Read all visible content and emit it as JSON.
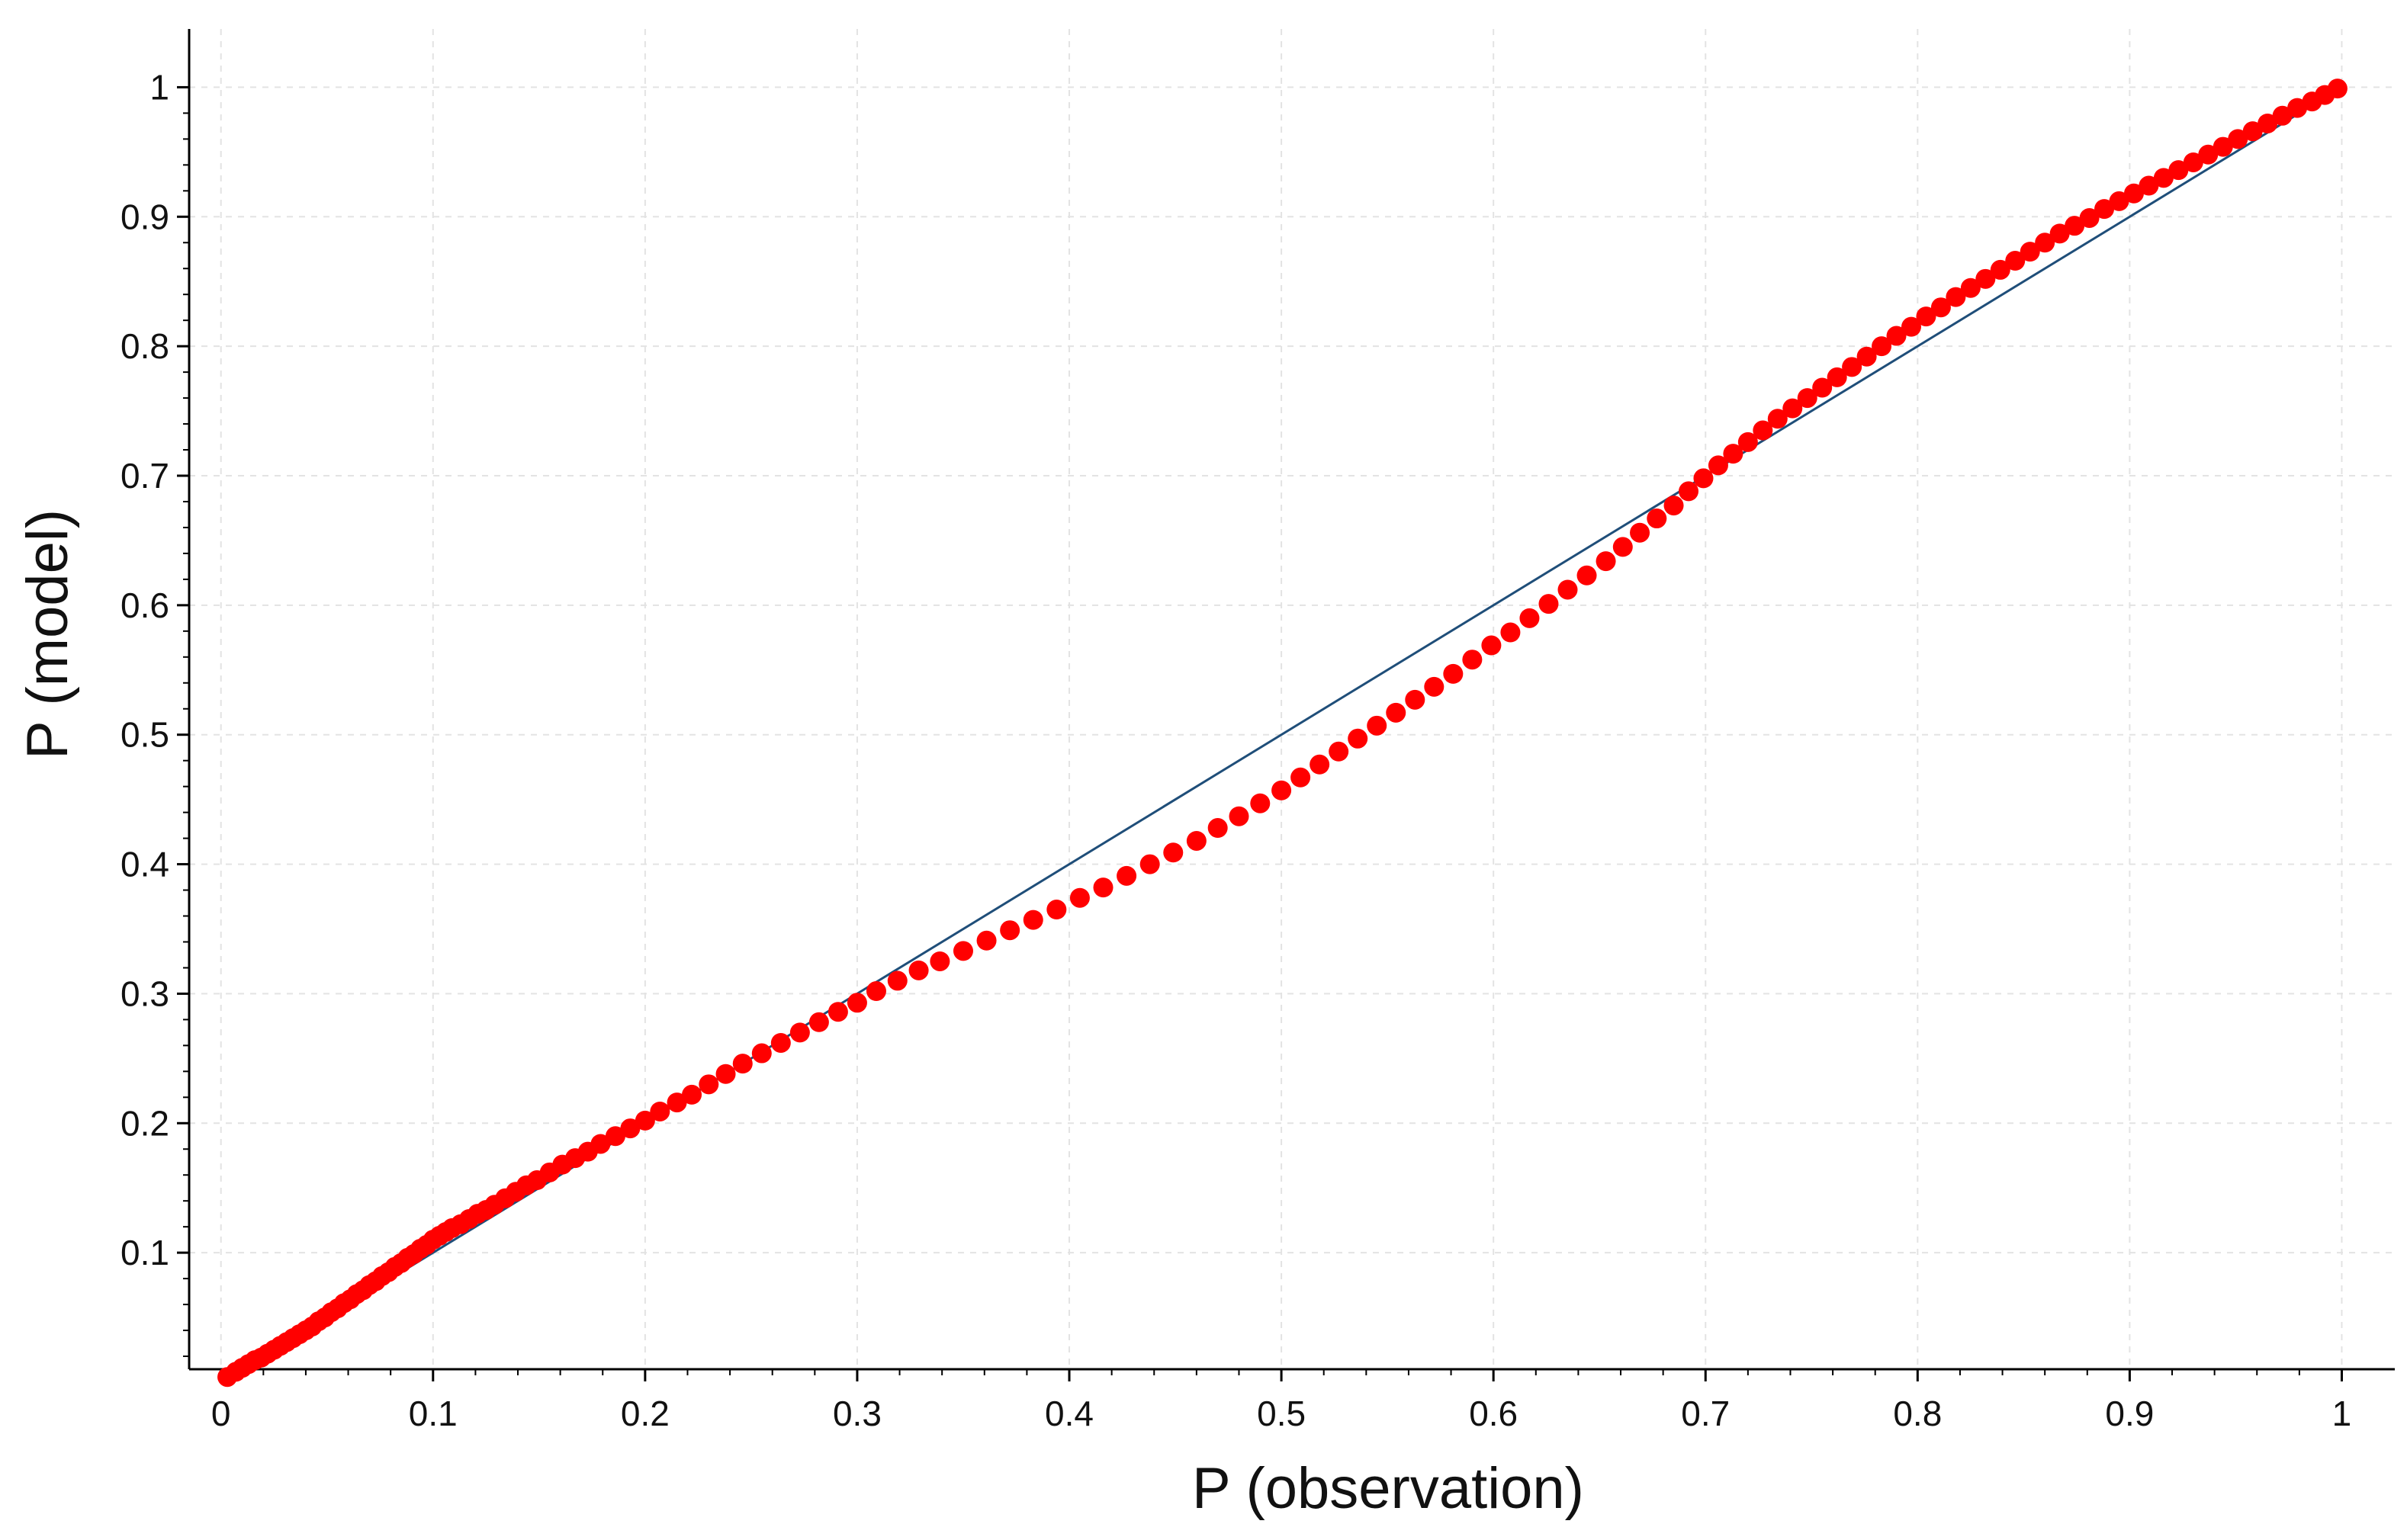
{
  "chart_data": {
    "type": "scatter",
    "title": "",
    "xlabel": "P (observation)",
    "ylabel": "P (model)",
    "xlim": [
      -0.015,
      1.025
    ],
    "ylim": [
      0.01,
      1.045
    ],
    "x_ticks": [
      0,
      0.1,
      0.2,
      0.3,
      0.4,
      0.5,
      0.6,
      0.7,
      0.8,
      0.9,
      1
    ],
    "x_tick_labels": [
      "0",
      "0.1",
      "0.2",
      "0.3",
      "0.4",
      "0.5",
      "0.6",
      "0.7",
      "0.8",
      "0.9",
      "1"
    ],
    "y_ticks": [
      0.1,
      0.2,
      0.3,
      0.4,
      0.5,
      0.6,
      0.7,
      0.8,
      0.9,
      1
    ],
    "y_tick_labels": [
      "0.1",
      "0.2",
      "0.3",
      "0.4",
      "0.5",
      "0.6",
      "0.7",
      "0.8",
      "0.9",
      "1"
    ],
    "grid": true,
    "legend": "none",
    "colors": {
      "points": "#ff0000",
      "reference_line": "#1f4e79",
      "grid": "#e3e3e3",
      "axis": "#000000"
    },
    "reference_line": {
      "x": [
        0,
        1
      ],
      "y": [
        0,
        1
      ]
    },
    "series": [
      {
        "points": [
          [
            0.003,
            0.004
          ],
          [
            0.007,
            0.008
          ],
          [
            0.01,
            0.011
          ],
          [
            0.013,
            0.014
          ],
          [
            0.016,
            0.017
          ],
          [
            0.019,
            0.019
          ],
          [
            0.022,
            0.022
          ],
          [
            0.025,
            0.025
          ],
          [
            0.028,
            0.028
          ],
          [
            0.031,
            0.031
          ],
          [
            0.034,
            0.034
          ],
          [
            0.037,
            0.037
          ],
          [
            0.04,
            0.04
          ],
          [
            0.043,
            0.043
          ],
          [
            0.046,
            0.047
          ],
          [
            0.049,
            0.05
          ],
          [
            0.052,
            0.054
          ],
          [
            0.055,
            0.057
          ],
          [
            0.058,
            0.061
          ],
          [
            0.061,
            0.064
          ],
          [
            0.064,
            0.068
          ],
          [
            0.067,
            0.071
          ],
          [
            0.07,
            0.075
          ],
          [
            0.073,
            0.078
          ],
          [
            0.076,
            0.082
          ],
          [
            0.079,
            0.085
          ],
          [
            0.082,
            0.089
          ],
          [
            0.085,
            0.092
          ],
          [
            0.088,
            0.096
          ],
          [
            0.091,
            0.099
          ],
          [
            0.094,
            0.103
          ],
          [
            0.097,
            0.106
          ],
          [
            0.1,
            0.11
          ],
          [
            0.103,
            0.113
          ],
          [
            0.106,
            0.116
          ],
          [
            0.109,
            0.119
          ],
          [
            0.113,
            0.122
          ],
          [
            0.117,
            0.126
          ],
          [
            0.121,
            0.13
          ],
          [
            0.125,
            0.133
          ],
          [
            0.129,
            0.137
          ],
          [
            0.134,
            0.142
          ],
          [
            0.139,
            0.147
          ],
          [
            0.144,
            0.152
          ],
          [
            0.149,
            0.156
          ],
          [
            0.155,
            0.162
          ],
          [
            0.161,
            0.168
          ],
          [
            0.167,
            0.173
          ],
          [
            0.173,
            0.178
          ],
          [
            0.179,
            0.184
          ],
          [
            0.186,
            0.19
          ],
          [
            0.193,
            0.196
          ],
          [
            0.2,
            0.202
          ],
          [
            0.207,
            0.209
          ],
          [
            0.215,
            0.216
          ],
          [
            0.222,
            0.222
          ],
          [
            0.23,
            0.23
          ],
          [
            0.238,
            0.238
          ],
          [
            0.246,
            0.246
          ],
          [
            0.255,
            0.254
          ],
          [
            0.264,
            0.262
          ],
          [
            0.273,
            0.27
          ],
          [
            0.282,
            0.278
          ],
          [
            0.291,
            0.286
          ],
          [
            0.3,
            0.293
          ],
          [
            0.309,
            0.302
          ],
          [
            0.319,
            0.31
          ],
          [
            0.329,
            0.318
          ],
          [
            0.339,
            0.325
          ],
          [
            0.35,
            0.333
          ],
          [
            0.361,
            0.341
          ],
          [
            0.372,
            0.349
          ],
          [
            0.383,
            0.357
          ],
          [
            0.394,
            0.365
          ],
          [
            0.405,
            0.374
          ],
          [
            0.416,
            0.382
          ],
          [
            0.427,
            0.391
          ],
          [
            0.438,
            0.4
          ],
          [
            0.449,
            0.409
          ],
          [
            0.46,
            0.418
          ],
          [
            0.47,
            0.428
          ],
          [
            0.48,
            0.437
          ],
          [
            0.49,
            0.447
          ],
          [
            0.5,
            0.457
          ],
          [
            0.509,
            0.467
          ],
          [
            0.518,
            0.477
          ],
          [
            0.527,
            0.487
          ],
          [
            0.536,
            0.497
          ],
          [
            0.545,
            0.507
          ],
          [
            0.554,
            0.517
          ],
          [
            0.563,
            0.527
          ],
          [
            0.572,
            0.537
          ],
          [
            0.581,
            0.547
          ],
          [
            0.59,
            0.558
          ],
          [
            0.599,
            0.569
          ],
          [
            0.608,
            0.579
          ],
          [
            0.617,
            0.59
          ],
          [
            0.626,
            0.601
          ],
          [
            0.635,
            0.612
          ],
          [
            0.644,
            0.623
          ],
          [
            0.653,
            0.634
          ],
          [
            0.661,
            0.645
          ],
          [
            0.669,
            0.656
          ],
          [
            0.677,
            0.667
          ],
          [
            0.685,
            0.677
          ],
          [
            0.692,
            0.688
          ],
          [
            0.699,
            0.698
          ],
          [
            0.706,
            0.708
          ],
          [
            0.713,
            0.717
          ],
          [
            0.72,
            0.726
          ],
          [
            0.727,
            0.735
          ],
          [
            0.734,
            0.744
          ],
          [
            0.741,
            0.752
          ],
          [
            0.748,
            0.76
          ],
          [
            0.755,
            0.768
          ],
          [
            0.762,
            0.776
          ],
          [
            0.769,
            0.784
          ],
          [
            0.776,
            0.792
          ],
          [
            0.783,
            0.8
          ],
          [
            0.79,
            0.808
          ],
          [
            0.797,
            0.815
          ],
          [
            0.804,
            0.823
          ],
          [
            0.811,
            0.83
          ],
          [
            0.818,
            0.838
          ],
          [
            0.825,
            0.845
          ],
          [
            0.832,
            0.852
          ],
          [
            0.839,
            0.859
          ],
          [
            0.846,
            0.866
          ],
          [
            0.853,
            0.873
          ],
          [
            0.86,
            0.88
          ],
          [
            0.867,
            0.887
          ],
          [
            0.874,
            0.893
          ],
          [
            0.881,
            0.899
          ],
          [
            0.888,
            0.906
          ],
          [
            0.895,
            0.912
          ],
          [
            0.902,
            0.918
          ],
          [
            0.909,
            0.924
          ],
          [
            0.916,
            0.93
          ],
          [
            0.923,
            0.936
          ],
          [
            0.93,
            0.942
          ],
          [
            0.937,
            0.948
          ],
          [
            0.944,
            0.954
          ],
          [
            0.951,
            0.96
          ],
          [
            0.958,
            0.966
          ],
          [
            0.965,
            0.972
          ],
          [
            0.972,
            0.978
          ],
          [
            0.979,
            0.984
          ],
          [
            0.986,
            0.989
          ],
          [
            0.992,
            0.994
          ],
          [
            0.998,
            0.999
          ]
        ]
      }
    ]
  }
}
